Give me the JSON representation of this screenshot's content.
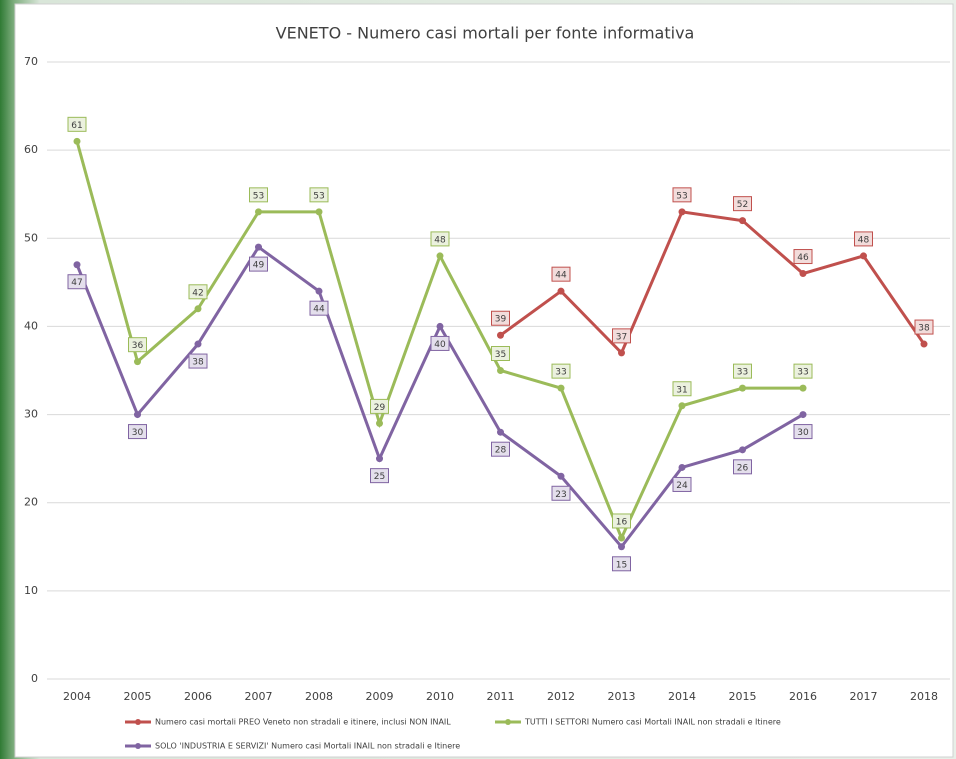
{
  "chart_data": {
    "type": "line",
    "title": "VENETO - Numero casi mortali per fonte informativa",
    "categories": [
      "2004",
      "2005",
      "2006",
      "2007",
      "2008",
      "2009",
      "2010",
      "2011",
      "2012",
      "2013",
      "2014",
      "2015",
      "2016",
      "2017",
      "2018"
    ],
    "series": [
      {
        "name": "Numero casi mortali PREO Veneto non stradali e itinere, inclusi  NON INAIL",
        "color": "#c0504d",
        "values": [
          null,
          null,
          null,
          null,
          null,
          null,
          null,
          39,
          44,
          37,
          53,
          52,
          46,
          48,
          38
        ]
      },
      {
        "name": "TUTTI I SETTORI Numero casi Mortali INAIL non stradali e Itinere",
        "color": "#9bbb59",
        "values": [
          61,
          36,
          42,
          53,
          53,
          29,
          48,
          35,
          33,
          16,
          31,
          33,
          33,
          null,
          null
        ]
      },
      {
        "name": "SOLO 'INDUSTRIA E SERVIZI' Numero casi Mortali INAIL non stradali e Itinere",
        "color": "#8064a2",
        "values": [
          47,
          30,
          38,
          49,
          44,
          25,
          40,
          28,
          23,
          15,
          24,
          26,
          30,
          null,
          null
        ]
      }
    ],
    "ylim": [
      0,
      70
    ],
    "yticks": [
      0,
      10,
      20,
      30,
      40,
      50,
      60,
      70
    ],
    "grid": true,
    "legend": "bottom"
  }
}
